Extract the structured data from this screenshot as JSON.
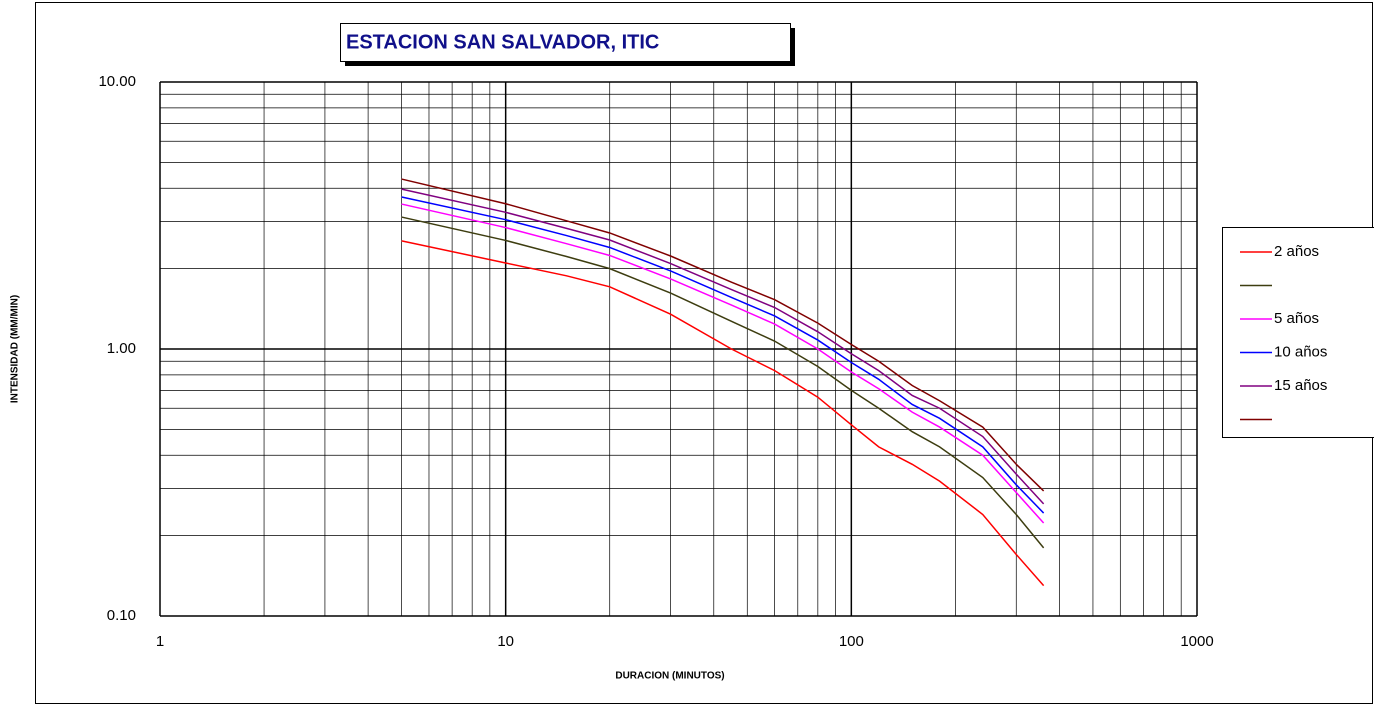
{
  "chart_data": {
    "type": "line",
    "title": "ESTACION SAN SALVADOR, ITIC",
    "x_label": "DURACION (MINUTOS)",
    "y_label": "INTENSIDAD (MM/MIN)",
    "log_x": true,
    "log_y": true,
    "grid": true,
    "x": [
      5,
      10,
      15,
      20,
      30,
      45,
      60,
      80,
      100,
      120,
      150,
      180,
      240,
      300,
      360
    ],
    "xlim": [
      1,
      1000
    ],
    "xticks": [
      1,
      10,
      100,
      1000
    ],
    "ylim": [
      0.1,
      10
    ],
    "yticks": [
      {
        "value": 0.1,
        "label": "0.10"
      },
      {
        "value": 1,
        "label": "1.00"
      },
      {
        "value": 10,
        "label": "10.00"
      }
    ],
    "xminor": [
      2,
      3,
      4,
      5,
      6,
      7,
      8,
      9,
      20,
      30,
      40,
      50,
      60,
      70,
      80,
      90,
      200,
      300,
      400,
      500,
      600,
      700,
      800,
      900
    ],
    "yminor": [
      0.2,
      0.3,
      0.4,
      0.5,
      0.6,
      0.7,
      0.8,
      0.9,
      2,
      3,
      4,
      5,
      6,
      7,
      8,
      9
    ],
    "series": [
      {
        "name": "2 años",
        "color": "#ff0000",
        "values": [
          2.54,
          2.1,
          1.88,
          1.71,
          1.35,
          1.0,
          0.83,
          0.66,
          0.52,
          0.43,
          0.37,
          0.32,
          0.24,
          0.17,
          0.13
        ]
      },
      {
        "name": null,
        "color": "#3d3d10",
        "values": [
          3.12,
          2.55,
          2.22,
          2.0,
          1.62,
          1.27,
          1.07,
          0.86,
          0.7,
          0.6,
          0.49,
          0.43,
          0.33,
          0.24,
          0.18
        ]
      },
      {
        "name": "5 años",
        "color": "#ff00ff",
        "values": [
          3.49,
          2.85,
          2.48,
          2.24,
          1.83,
          1.46,
          1.24,
          1.0,
          0.82,
          0.71,
          0.58,
          0.51,
          0.4,
          0.29,
          0.223
        ]
      },
      {
        "name": "10 años",
        "color": "#0000ff",
        "values": [
          3.71,
          3.05,
          2.66,
          2.4,
          1.96,
          1.56,
          1.33,
          1.08,
          0.89,
          0.77,
          0.62,
          0.55,
          0.43,
          0.31,
          0.243
        ]
      },
      {
        "name": "15 años",
        "color": "#800080",
        "values": [
          3.97,
          3.25,
          2.83,
          2.56,
          2.09,
          1.67,
          1.43,
          1.16,
          0.96,
          0.83,
          0.67,
          0.6,
          0.47,
          0.34,
          0.263
        ]
      },
      {
        "name": null,
        "color": "#800000",
        "values": [
          4.33,
          3.5,
          3.02,
          2.72,
          2.23,
          1.78,
          1.53,
          1.25,
          1.04,
          0.9,
          0.73,
          0.64,
          0.51,
          0.37,
          0.294
        ]
      }
    ]
  }
}
